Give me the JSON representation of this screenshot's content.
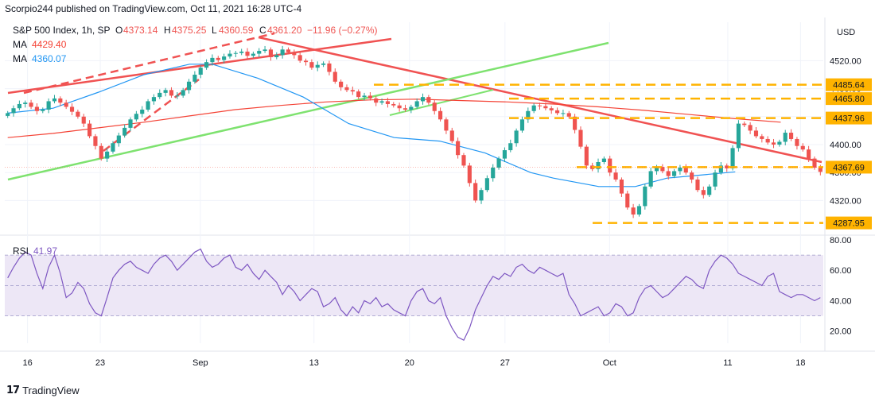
{
  "header": {
    "published": "Scorpio244 published on TradingView.com, Oct 11, 2021 16:28 UTC-4"
  },
  "footer": {
    "logo": "17",
    "brand": "TradingView"
  },
  "legend": {
    "symbol": "S&P 500 Index, 1h, SP",
    "o_label": "O",
    "o": "4373.14",
    "h_label": "H",
    "h": "4375.25",
    "l_label": "L",
    "l": "4360.59",
    "c_label": "C",
    "c": "4361.20",
    "change": "−11.96 (−0.27%)",
    "ma1_label": "MA",
    "ma1": "4429.40",
    "ma2_label": "MA",
    "ma2": "4360.07",
    "rsi_label": "RSI",
    "rsi": "41.97"
  },
  "colors": {
    "up": "#26a69a",
    "down": "#ef5350",
    "ma_fast": "#2196f3",
    "ma_slow": "#f44336",
    "trend_red": "#f05252",
    "trend_green": "#7ee26f",
    "level": "#ffb300",
    "rsi_line": "#7e57c2",
    "rsi_band": "#ede7f6",
    "grid": "#f0f3fa",
    "axis_text": "#131722"
  },
  "chart_data": [
    {
      "type": "candlestick",
      "title": "S&P 500 Index, 1h, SP",
      "currency": "USD",
      "ylim": [
        4275,
        4575
      ],
      "y_ticks": [
        4320.0,
        4360.0,
        4400.0,
        4440.0,
        4480.0,
        4520.0
      ],
      "x_tick_labels": [
        "16",
        "23",
        "Sep",
        "13",
        "20",
        "27",
        "Oct",
        "11",
        "18"
      ],
      "last_price_label": "4367.69",
      "horizontal_levels": [
        4485.64,
        4465.8,
        4437.96,
        4367.69,
        4287.95
      ],
      "series": [
        {
          "name": "MA",
          "value": 4429.4,
          "color": "#f44336",
          "points": [
            [
              0,
              4410
            ],
            [
              10,
              4416
            ],
            [
              20,
              4424
            ],
            [
              30,
              4432
            ],
            [
              40,
              4441
            ],
            [
              50,
              4450
            ],
            [
              60,
              4456
            ],
            [
              70,
              4461
            ],
            [
              80,
              4464
            ],
            [
              90,
              4465
            ],
            [
              100,
              4463
            ],
            [
              110,
              4461
            ],
            [
              120,
              4458
            ],
            [
              130,
              4454
            ],
            [
              140,
              4449
            ],
            [
              150,
              4443
            ],
            [
              160,
              4437
            ],
            [
              170,
              4432
            ]
          ]
        },
        {
          "name": "MA",
          "value": 4360.07,
          "color": "#2196f3",
          "points": [
            [
              0,
              4445
            ],
            [
              10,
              4452
            ],
            [
              20,
              4475
            ],
            [
              30,
              4500
            ],
            [
              40,
              4515
            ],
            [
              45,
              4515
            ],
            [
              55,
              4495
            ],
            [
              65,
              4468
            ],
            [
              75,
              4430
            ],
            [
              85,
              4410
            ],
            [
              95,
              4405
            ],
            [
              105,
              4388
            ],
            [
              115,
              4360
            ],
            [
              120,
              4352
            ],
            [
              130,
              4340
            ],
            [
              138,
              4340
            ],
            [
              145,
              4352
            ],
            [
              150,
              4355
            ],
            [
              160,
              4361
            ]
          ]
        }
      ],
      "candles_close": [
        4445,
        4452,
        4458,
        4460,
        4454,
        4448,
        4450,
        4462,
        4466,
        4460,
        4454,
        4447,
        4440,
        4430,
        4412,
        4398,
        4380,
        4390,
        4402,
        4413,
        4424,
        4436,
        4444,
        4450,
        4462,
        4468,
        4474,
        4478,
        4470,
        4470,
        4478,
        4490,
        4500,
        4510,
        4518,
        4524,
        4521,
        4526,
        4530,
        4531,
        4533,
        4527,
        4530,
        4534,
        4536,
        4525,
        4528,
        4536,
        4532,
        4528,
        4520,
        4518,
        4510,
        4514,
        4516,
        4504,
        4490,
        4482,
        4478,
        4476,
        4468,
        4470,
        4466,
        4460,
        4462,
        4458,
        4456,
        4452,
        4450,
        4454,
        4462,
        4468,
        4460,
        4448,
        4436,
        4420,
        4405,
        4385,
        4370,
        4345,
        4320,
        4335,
        4352,
        4367,
        4380,
        4392,
        4402,
        4420,
        4436,
        4448,
        4456,
        4455,
        4452,
        4449,
        4445,
        4445,
        4440,
        4421,
        4397,
        4370,
        4365,
        4375,
        4380,
        4360,
        4350,
        4330,
        4310,
        4300,
        4312,
        4340,
        4362,
        4368,
        4362,
        4355,
        4362,
        4367,
        4360,
        4350,
        4335,
        4328,
        4340,
        4360,
        4370,
        4366,
        4395,
        4430,
        4428,
        4420,
        4412,
        4408,
        4403,
        4400,
        4404,
        4417,
        4408,
        4398,
        4393,
        4380,
        4367,
        4361
      ]
    },
    {
      "type": "line",
      "title": "RSI",
      "ylim": [
        12,
        80
      ],
      "y_ticks": [
        20.0,
        40.0,
        60.0,
        80.0
      ],
      "bands": [
        30,
        70
      ],
      "midline": 50,
      "values": [
        55,
        62,
        68,
        72,
        70,
        58,
        48,
        62,
        70,
        58,
        42,
        45,
        52,
        48,
        38,
        32,
        30,
        42,
        55,
        60,
        64,
        66,
        62,
        60,
        58,
        64,
        68,
        70,
        66,
        60,
        64,
        68,
        72,
        74,
        66,
        62,
        64,
        68,
        70,
        62,
        60,
        64,
        58,
        54,
        60,
        56,
        52,
        44,
        50,
        46,
        40,
        44,
        48,
        46,
        36,
        38,
        42,
        34,
        30,
        36,
        32,
        40,
        38,
        42,
        36,
        38,
        34,
        32,
        30,
        40,
        46,
        48,
        40,
        38,
        42,
        30,
        22,
        16,
        14,
        22,
        34,
        42,
        50,
        56,
        54,
        58,
        56,
        62,
        64,
        60,
        58,
        62,
        60,
        58,
        56,
        58,
        44,
        38,
        30,
        32,
        34,
        36,
        30,
        32,
        38,
        36,
        30,
        32,
        42,
        48,
        50,
        46,
        42,
        44,
        48,
        52,
        56,
        54,
        50,
        48,
        60,
        66,
        70,
        68,
        64,
        58,
        56,
        54,
        52,
        50,
        56,
        58,
        46,
        44,
        42,
        44,
        44,
        42,
        40,
        42
      ]
    }
  ]
}
